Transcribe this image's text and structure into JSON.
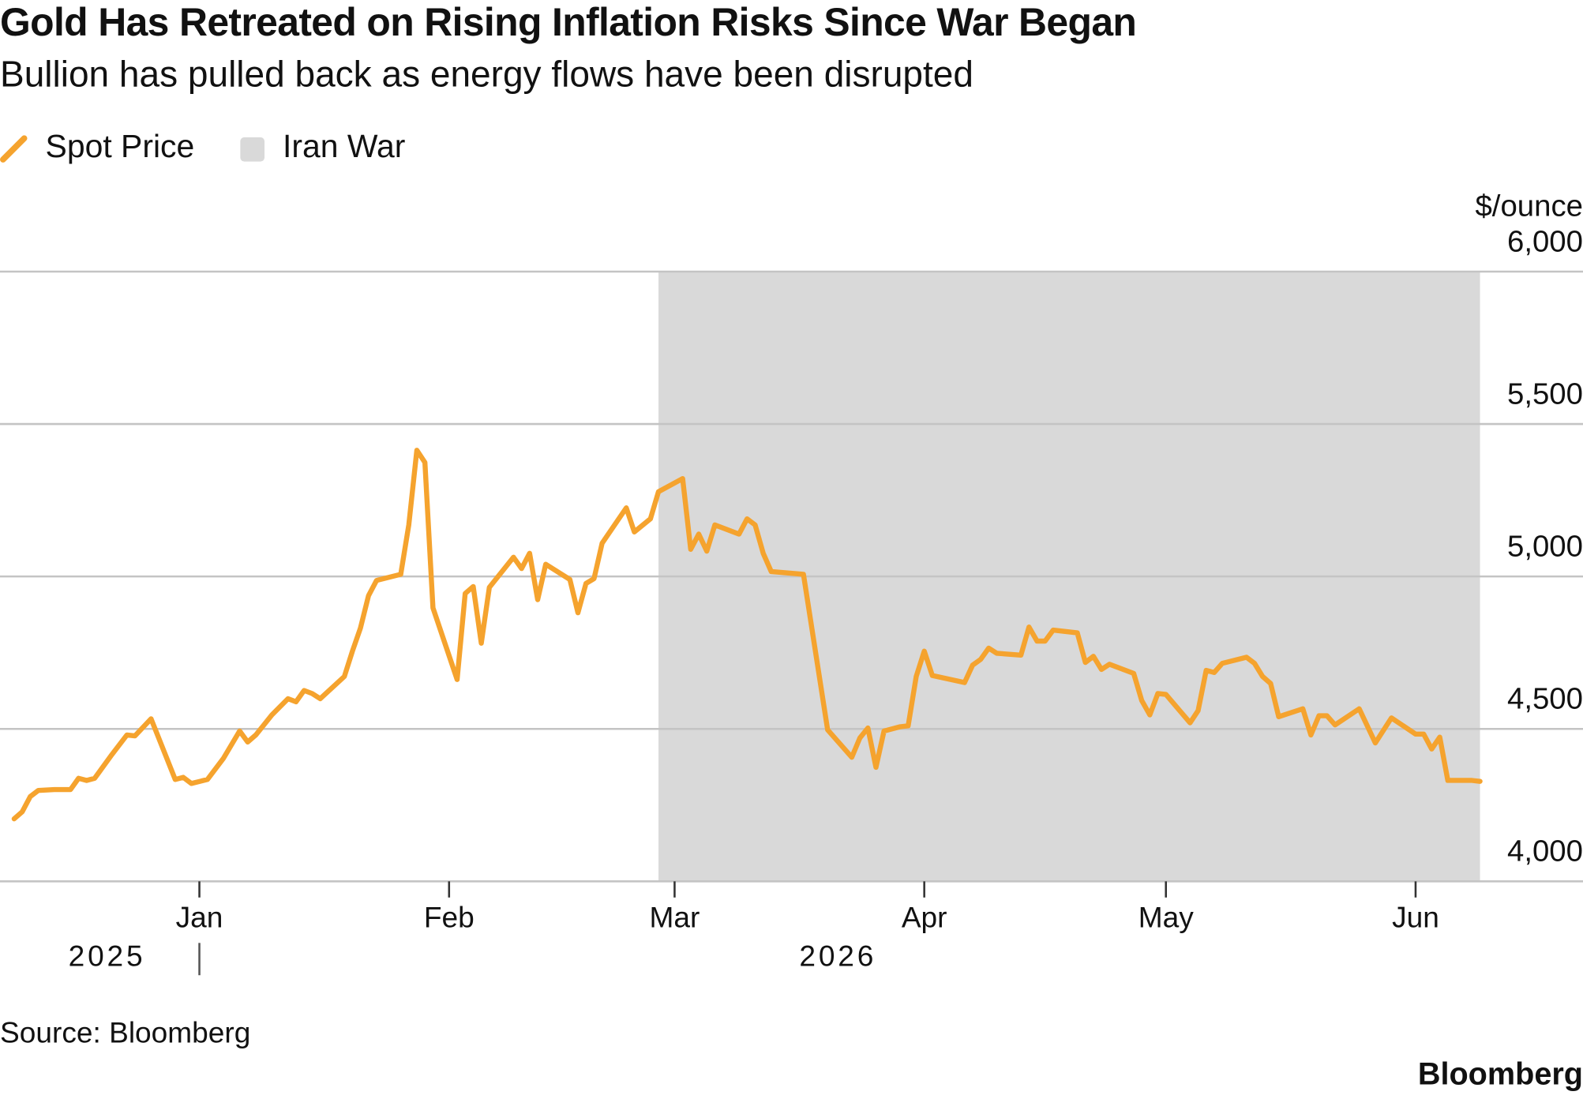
{
  "chart_data": {
    "type": "line",
    "title": "Gold Has Retreated on Rising Inflation Risks Since War Began",
    "subtitle": "Bullion has pulled back as energy flows have been disrupted",
    "y_unit_label": "$/ounce",
    "source": "Source: Bloomberg",
    "brand": "Bloomberg",
    "ylim": [
      4000,
      6000
    ],
    "yticks": [
      {
        "value": 4000,
        "label": "4,000"
      },
      {
        "value": 4500,
        "label": "4,500"
      },
      {
        "value": 5000,
        "label": "5,000"
      },
      {
        "value": 5500,
        "label": "5,500"
      },
      {
        "value": 6000,
        "label": "6,000"
      }
    ],
    "xlim": [
      0,
      182
    ],
    "xticks": [
      {
        "value": 23,
        "label": "Jan"
      },
      {
        "value": 54,
        "label": "Feb"
      },
      {
        "value": 82,
        "label": "Mar"
      },
      {
        "value": 113,
        "label": "Apr"
      },
      {
        "value": 143,
        "label": "May"
      },
      {
        "value": 174,
        "label": "Jun"
      }
    ],
    "year_labels": [
      "2025",
      "2026"
    ],
    "grid": true,
    "shaded_region": {
      "name": "Iran War",
      "from": 80,
      "to": 182,
      "color": "#d9d9d9"
    },
    "x": [
      0,
      1,
      2,
      3,
      5,
      7,
      8,
      9,
      10,
      12,
      14,
      15,
      17,
      20,
      21,
      22,
      24,
      26,
      28,
      29,
      30,
      32,
      34,
      35,
      36,
      37,
      38,
      41,
      42,
      43,
      44,
      45,
      48,
      49,
      50,
      51,
      52,
      55,
      56,
      57,
      58,
      59,
      62,
      63,
      64,
      65,
      66,
      69,
      70,
      71,
      72,
      73,
      76,
      77,
      79,
      80,
      83,
      84,
      85,
      86,
      87,
      90,
      91,
      92,
      93,
      94,
      98,
      101,
      104,
      105,
      106,
      107,
      108,
      110,
      111,
      112,
      113,
      114,
      118,
      119,
      120,
      121,
      122,
      125,
      126,
      127,
      128,
      129,
      132,
      133,
      134,
      135,
      136,
      139,
      140,
      141,
      142,
      143,
      146,
      147,
      148,
      149,
      150,
      153,
      154,
      155,
      156,
      157,
      160,
      161,
      162,
      163,
      164,
      167,
      169,
      171,
      174,
      175,
      176,
      177,
      178,
      181,
      182
    ],
    "series": [
      {
        "name": "Spot Price",
        "color": "#f5a32e",
        "values": [
          4205,
          4228,
          4278,
          4298,
          4301,
          4301,
          4338,
          4331,
          4338,
          4411,
          4480,
          4477,
          4533,
          4334,
          4341,
          4321,
          4334,
          4404,
          4493,
          4457,
          4480,
          4546,
          4599,
          4589,
          4626,
          4616,
          4599,
          4672,
          4755,
          4831,
          4937,
          4987,
          5007,
          5169,
          5414,
          5374,
          4897,
          4662,
          4944,
          4967,
          4781,
          4964,
          5063,
          5026,
          5076,
          4924,
          5040,
          4990,
          4881,
          4977,
          4993,
          5109,
          5225,
          5146,
          5189,
          5278,
          5321,
          5089,
          5139,
          5083,
          5169,
          5139,
          5189,
          5169,
          5076,
          5016,
          5007,
          4497,
          4407,
          4470,
          4503,
          4374,
          4493,
          4507,
          4510,
          4672,
          4755,
          4675,
          4652,
          4709,
          4728,
          4765,
          4748,
          4742,
          4834,
          4788,
          4788,
          4824,
          4815,
          4718,
          4738,
          4695,
          4712,
          4682,
          4593,
          4546,
          4616,
          4613,
          4520,
          4560,
          4692,
          4685,
          4715,
          4735,
          4715,
          4672,
          4649,
          4540,
          4566,
          4480,
          4543,
          4543,
          4513,
          4566,
          4454,
          4536,
          4483,
          4483,
          4434,
          4473,
          4331,
          4331,
          4328
        ]
      }
    ]
  }
}
